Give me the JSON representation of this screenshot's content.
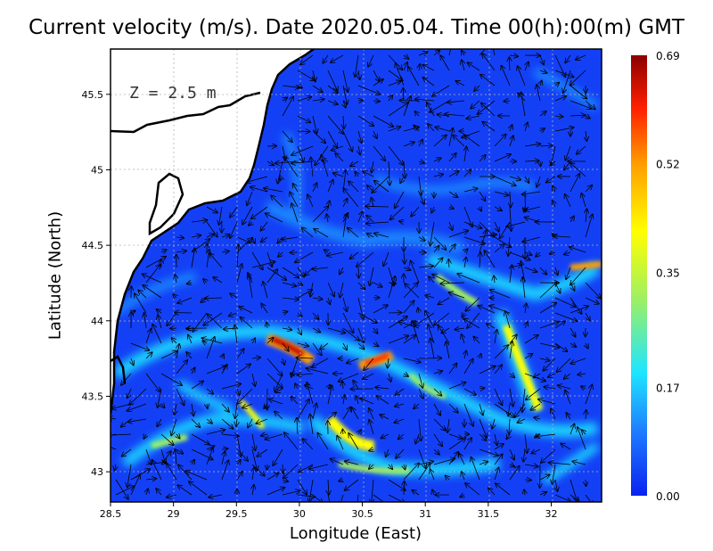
{
  "title": "Current velocity (m/s). Date 2020.05.04. Time 00(h):00(m) GMT",
  "depth_label": "Z = 2.5 m",
  "axes": {
    "xlabel": "Longitude (East)",
    "ylabel": "Latitude (North)",
    "xlim": [
      28.5,
      32.4
    ],
    "ylim": [
      42.8,
      45.8
    ],
    "xticks": [
      "28.5",
      "29",
      "29.5",
      "30",
      "30.5",
      "31",
      "31.5",
      "32"
    ],
    "yticks": [
      "43",
      "43.5",
      "44",
      "44.5",
      "45",
      "45.5"
    ],
    "grid": true
  },
  "colorbar": {
    "ticks": [
      "0.00",
      "0.17",
      "0.35",
      "0.52",
      "0.69"
    ],
    "min": 0.0,
    "max": 0.69,
    "colors": [
      "#0a22f0",
      "#1e78ff",
      "#1ee6ff",
      "#a0f060",
      "#ffff00",
      "#ffa000",
      "#ff2000",
      "#8b0000"
    ]
  },
  "colors": {
    "sea": "#1440f5",
    "land": "#ffffff",
    "coast": "#000000"
  },
  "chart_data": {
    "type": "heatmap",
    "variable": "current velocity",
    "unit": "m/s",
    "max_speed_regions": [
      {
        "lon": 29.9,
        "lat": 43.85,
        "speed": 0.69
      },
      {
        "lon": 30.6,
        "lat": 43.75,
        "speed": 0.62
      },
      {
        "lon": 30.4,
        "lat": 43.15,
        "speed": 0.5
      },
      {
        "lon": 31.85,
        "lat": 43.45,
        "speed": 0.5
      },
      {
        "lon": 31.7,
        "lat": 43.85,
        "speed": 0.45
      },
      {
        "lon": 32.25,
        "lat": 44.35,
        "speed": 0.5
      }
    ]
  }
}
